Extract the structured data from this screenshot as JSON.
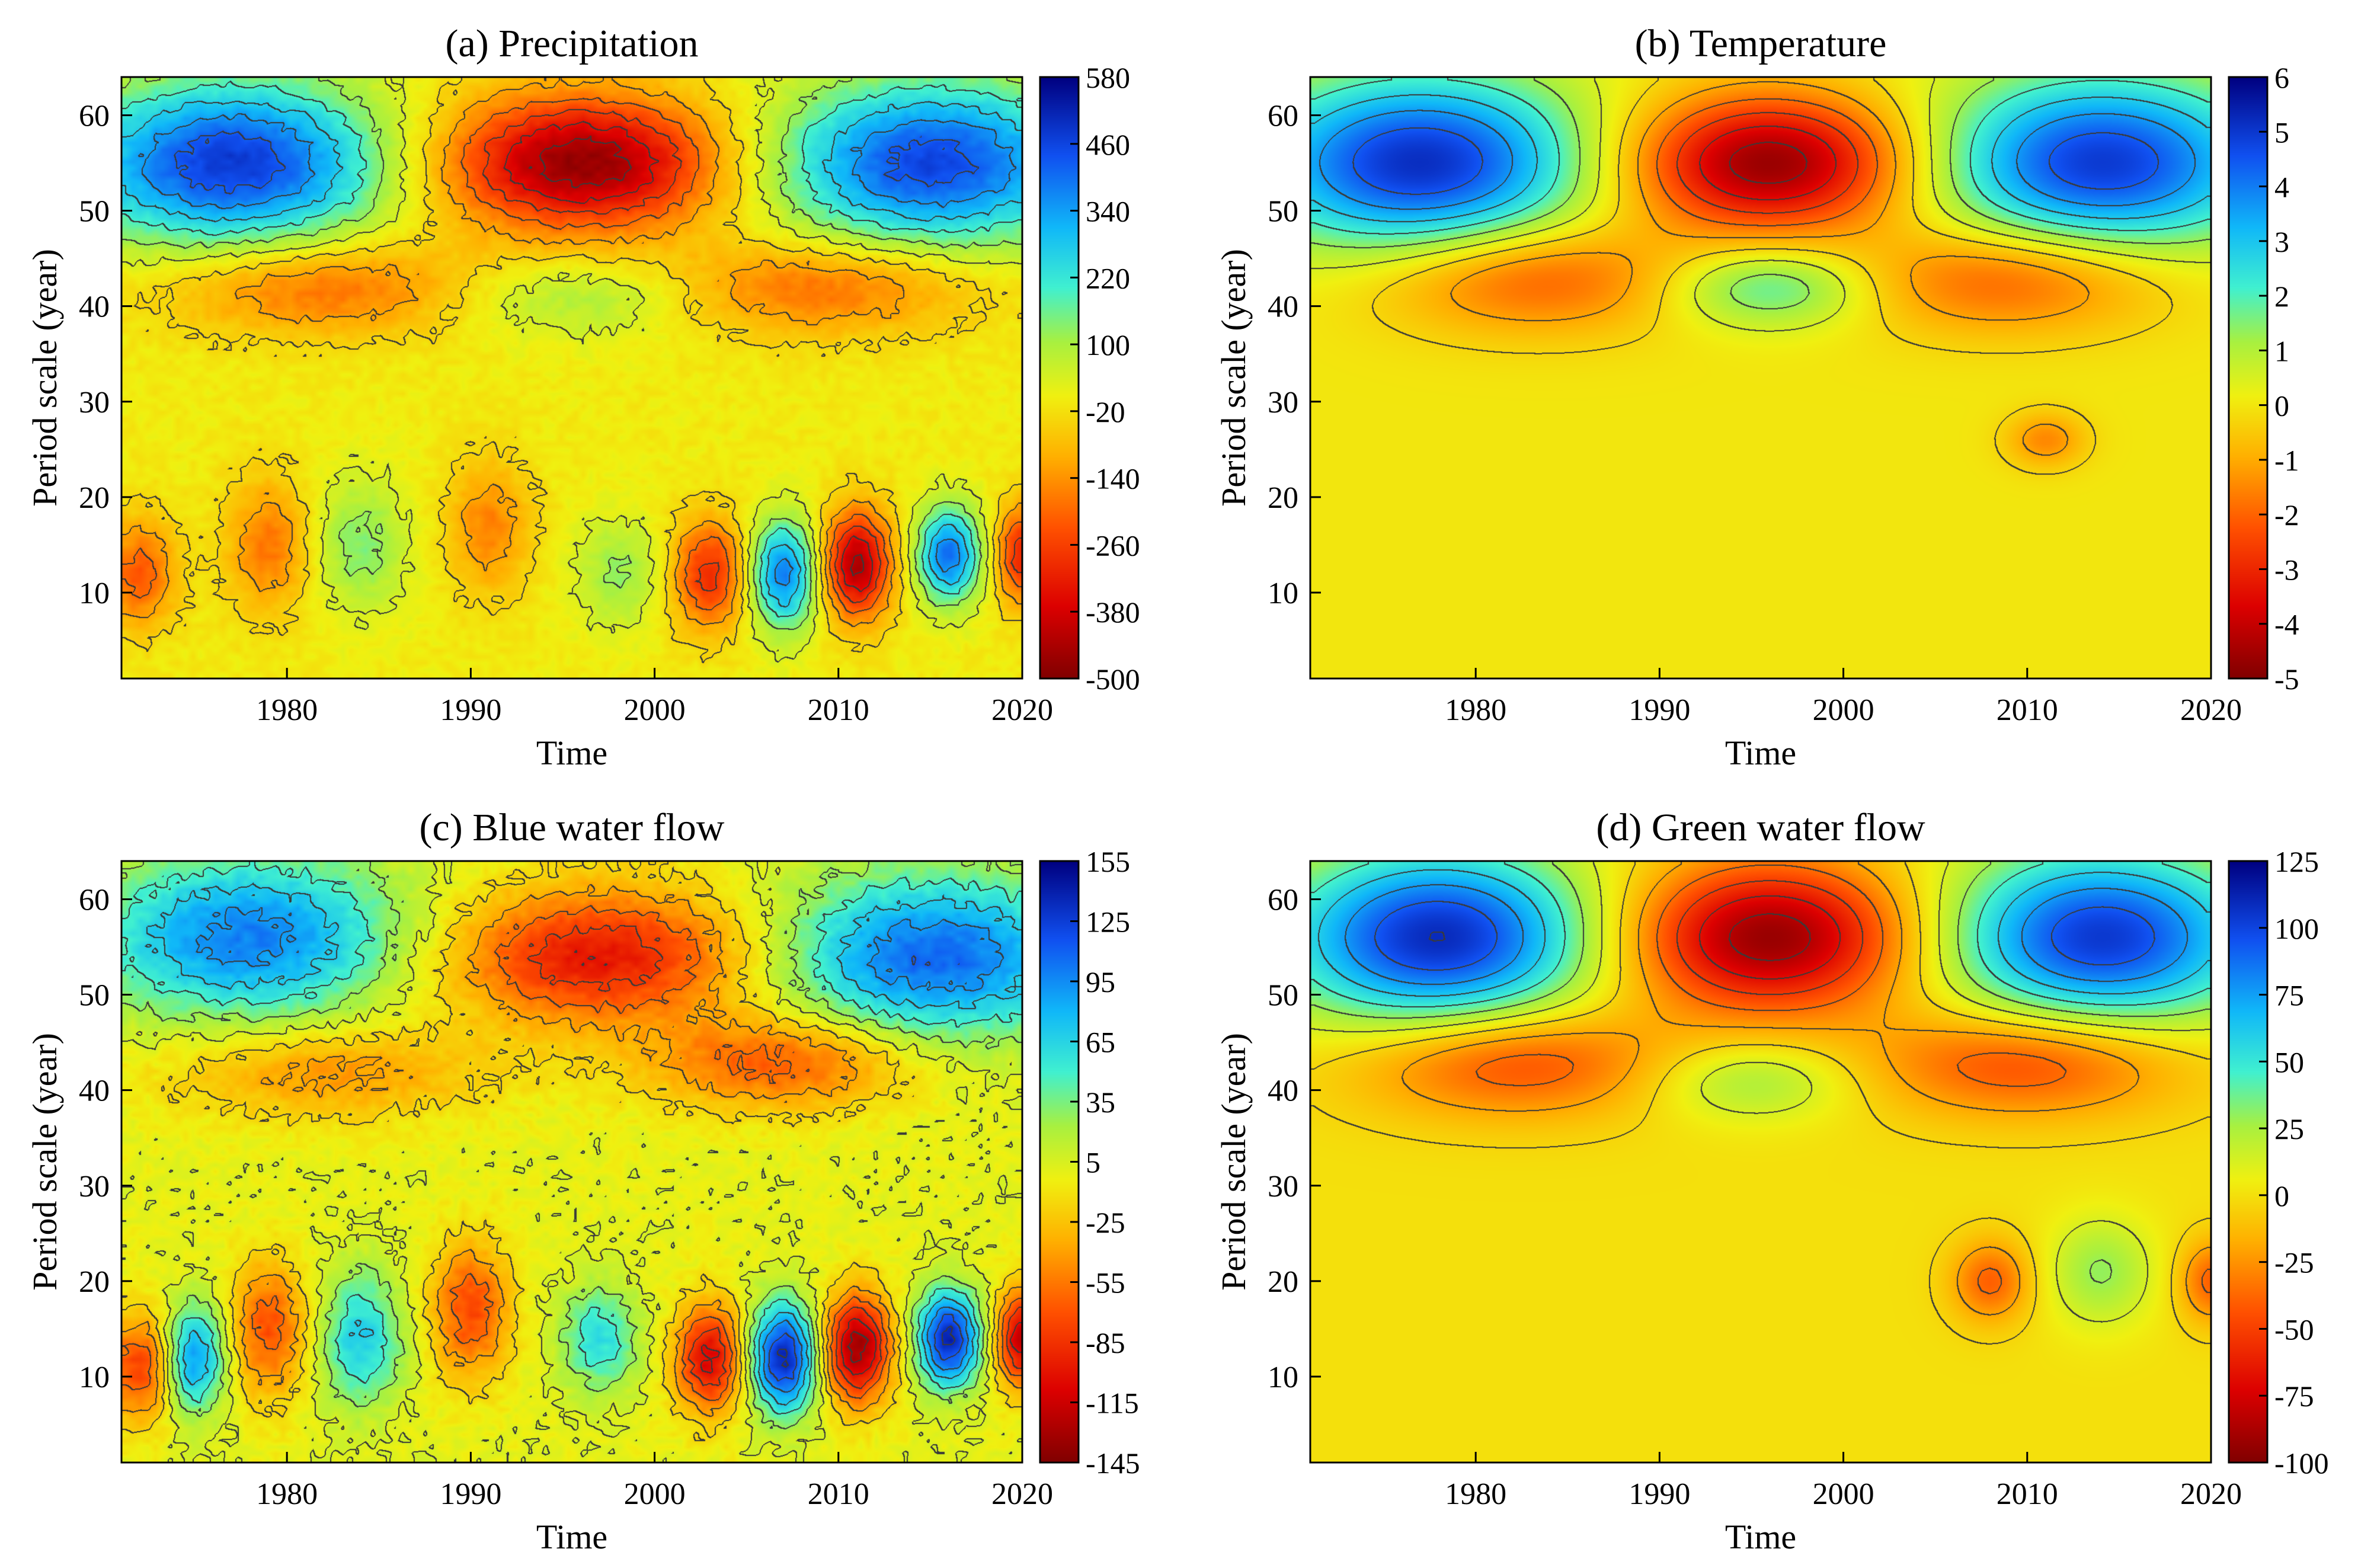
{
  "figure": {
    "xlabel": "Time",
    "ylabel": "Period scale (year)"
  },
  "chart_data": [
    {
      "id": "a",
      "type": "heatmap",
      "title": "(a) Precipitation",
      "xlabel": "Time",
      "ylabel": "Period scale (year)",
      "xlim": [
        1971,
        2020
      ],
      "ylim": [
        1,
        64
      ],
      "xticks": [
        1980,
        1990,
        2000,
        2010,
        2020
      ],
      "yticks": [
        10,
        20,
        30,
        40,
        50,
        60
      ],
      "colorbar": {
        "min": -500,
        "max": 580,
        "ticks": [
          "580",
          "460",
          "340",
          "220",
          "100",
          "-20",
          "-140",
          "-260",
          "-380",
          "-500"
        ]
      },
      "noise": 0.22,
      "features": [
        {
          "label": "blue high, left top",
          "x": 1977,
          "y": 55,
          "value": 480,
          "sx": 6,
          "sy": 6
        },
        {
          "label": "red low, centre top",
          "x": 1996,
          "y": 55,
          "value": -480,
          "sx": 5.5,
          "sy": 5
        },
        {
          "label": "blue high, right top",
          "x": 2015,
          "y": 55,
          "value": 460,
          "sx": 6,
          "sy": 6
        },
        {
          "label": "orange band left",
          "x": 1982,
          "y": 42,
          "value": -200,
          "sx": 6,
          "sy": 3.5
        },
        {
          "label": "orange band right",
          "x": 2009,
          "y": 42,
          "value": -200,
          "sx": 6,
          "sy": 3.5
        },
        {
          "label": "cyan centre",
          "x": 1996,
          "y": 41,
          "value": 120,
          "sx": 5,
          "sy": 3
        },
        {
          "label": "orange blob 1974",
          "x": 1972,
          "y": 12,
          "value": -220,
          "sx": 1.4,
          "sy": 4
        },
        {
          "label": "orange blob 1980",
          "x": 1979,
          "y": 15,
          "value": -180,
          "sx": 1.6,
          "sy": 5
        },
        {
          "label": "cyan blob 1984",
          "x": 1984,
          "y": 15,
          "value": 140,
          "sx": 1.8,
          "sy": 5
        },
        {
          "label": "orange blob 1990",
          "x": 1991,
          "y": 17,
          "value": -160,
          "sx": 1.6,
          "sy": 5
        },
        {
          "label": "cyan blob 1998",
          "x": 1998,
          "y": 12,
          "value": 120,
          "sx": 1.6,
          "sy": 4
        },
        {
          "label": "red blob 2003",
          "x": 2003,
          "y": 12,
          "value": -300,
          "sx": 1.4,
          "sy": 4
        },
        {
          "label": "blue blob 2007",
          "x": 2007,
          "y": 12,
          "value": 380,
          "sx": 1.3,
          "sy": 4
        },
        {
          "label": "dark red blob 2011",
          "x": 2011,
          "y": 13,
          "value": -440,
          "sx": 1.3,
          "sy": 4
        },
        {
          "label": "blue blob 2016",
          "x": 2016,
          "y": 14,
          "value": 400,
          "sx": 1.2,
          "sy": 3.5
        },
        {
          "label": "red blob 2020",
          "x": 2020,
          "y": 14,
          "value": -320,
          "sx": 1.0,
          "sy": 3.5
        }
      ]
    },
    {
      "id": "b",
      "type": "heatmap",
      "title": "(b) Temperature",
      "xlabel": "Time",
      "ylabel": "Period scale (year)",
      "xlim": [
        1971,
        2020
      ],
      "ylim": [
        1,
        64
      ],
      "xticks": [
        1980,
        1990,
        2000,
        2010,
        2020
      ],
      "yticks": [
        10,
        20,
        30,
        40,
        50,
        60
      ],
      "colorbar": {
        "min": -5,
        "max": 6,
        "ticks": [
          "6",
          "5",
          "4",
          "3",
          "2",
          "1",
          "0",
          "-1",
          "-2",
          "-3",
          "-4",
          "-5"
        ]
      },
      "noise": 0.0,
      "features": [
        {
          "label": "blue high, left top",
          "x": 1977,
          "y": 55,
          "value": 5.2,
          "sx": 6.5,
          "sy": 6.5
        },
        {
          "label": "red low, centre top",
          "x": 1996,
          "y": 55,
          "value": -4.8,
          "sx": 5.5,
          "sy": 5
        },
        {
          "label": "blue high, right top",
          "x": 2014,
          "y": 55,
          "value": 5.0,
          "sx": 6.5,
          "sy": 6.5
        },
        {
          "label": "orange band left",
          "x": 1983,
          "y": 43,
          "value": -2.3,
          "sx": 6,
          "sy": 4
        },
        {
          "label": "orange band right",
          "x": 2009,
          "y": 43,
          "value": -2.3,
          "sx": 6,
          "sy": 4
        },
        {
          "label": "cyan centre",
          "x": 1996,
          "y": 42,
          "value": 2.2,
          "sx": 4,
          "sy": 3
        },
        {
          "label": "orange dot 2011",
          "x": 2011,
          "y": 26,
          "value": -1.5,
          "sx": 1.5,
          "sy": 2
        }
      ]
    },
    {
      "id": "c",
      "type": "heatmap",
      "title": "(c) Blue water flow",
      "xlabel": "Time",
      "ylabel": "Period scale (year)",
      "xlim": [
        1971,
        2020
      ],
      "ylim": [
        1,
        64
      ],
      "xticks": [
        1980,
        1990,
        2000,
        2010,
        2020
      ],
      "yticks": [
        10,
        20,
        30,
        40,
        50,
        60
      ],
      "colorbar": {
        "min": -145,
        "max": 155,
        "ticks": [
          "155",
          "125",
          "95",
          "65",
          "35",
          "5",
          "-25",
          "-55",
          "-85",
          "-115",
          "-145"
        ]
      },
      "noise": 0.3,
      "features": [
        {
          "label": "blue high, left top",
          "x": 1978,
          "y": 56,
          "value": 100,
          "sx": 6,
          "sy": 6
        },
        {
          "label": "orange low, centre top",
          "x": 1997,
          "y": 54,
          "value": -100,
          "sx": 6,
          "sy": 5
        },
        {
          "label": "blue high, right top",
          "x": 2015,
          "y": 54,
          "value": 110,
          "sx": 6,
          "sy": 6
        },
        {
          "label": "yellow band left",
          "x": 1982,
          "y": 42,
          "value": -45,
          "sx": 6,
          "sy": 3.5
        },
        {
          "label": "orange band right",
          "x": 2007,
          "y": 43,
          "value": -70,
          "sx": 5,
          "sy": 3.5
        },
        {
          "label": "blob 1972",
          "x": 1972,
          "y": 11,
          "value": -80,
          "sx": 1.2,
          "sy": 4
        },
        {
          "label": "blob 1975",
          "x": 1975,
          "y": 12,
          "value": 90,
          "sx": 1.2,
          "sy": 4
        },
        {
          "label": "blob 1979",
          "x": 1979,
          "y": 15,
          "value": -70,
          "sx": 1.5,
          "sy": 5
        },
        {
          "label": "blob 1984",
          "x": 1984,
          "y": 14,
          "value": 70,
          "sx": 1.6,
          "sy": 5
        },
        {
          "label": "blob 1990",
          "x": 1990,
          "y": 17,
          "value": -75,
          "sx": 1.5,
          "sy": 5
        },
        {
          "label": "blob 1997",
          "x": 1997,
          "y": 14,
          "value": 60,
          "sx": 1.5,
          "sy": 4
        },
        {
          "label": "blob 2003",
          "x": 2003,
          "y": 12,
          "value": -110,
          "sx": 1.3,
          "sy": 4
        },
        {
          "label": "blob 2007",
          "x": 2007,
          "y": 12,
          "value": 140,
          "sx": 1.3,
          "sy": 4
        },
        {
          "label": "blob 2011",
          "x": 2011,
          "y": 13,
          "value": -135,
          "sx": 1.3,
          "sy": 4
        },
        {
          "label": "blob 2016",
          "x": 2016,
          "y": 14,
          "value": 140,
          "sx": 1.2,
          "sy": 3.5
        },
        {
          "label": "blob 2020",
          "x": 2020,
          "y": 14,
          "value": -120,
          "sx": 1.0,
          "sy": 3.5
        }
      ]
    },
    {
      "id": "d",
      "type": "heatmap",
      "title": "(d) Green water flow",
      "xlabel": "Time",
      "ylabel": "Period scale (year)",
      "xlim": [
        1971,
        2020
      ],
      "ylim": [
        1,
        64
      ],
      "xticks": [
        1980,
        1990,
        2000,
        2010,
        2020
      ],
      "yticks": [
        10,
        20,
        30,
        40,
        50,
        60
      ],
      "colorbar": {
        "min": -100,
        "max": 125,
        "ticks": [
          "125",
          "100",
          "75",
          "50",
          "25",
          "0",
          "-25",
          "-50",
          "-75",
          "-100"
        ]
      },
      "noise": 0.0,
      "features": [
        {
          "label": "blue high, left top",
          "x": 1978,
          "y": 56,
          "value": 110,
          "sx": 6,
          "sy": 6.5
        },
        {
          "label": "red low, centre top",
          "x": 1996,
          "y": 56,
          "value": -95,
          "sx": 5.5,
          "sy": 5.5
        },
        {
          "label": "blue high, right top",
          "x": 2014,
          "y": 56,
          "value": 105,
          "sx": 6,
          "sy": 6.5
        },
        {
          "label": "orange band left",
          "x": 1982,
          "y": 43,
          "value": -50,
          "sx": 6,
          "sy": 4
        },
        {
          "label": "orange band right",
          "x": 2010,
          "y": 43,
          "value": -50,
          "sx": 6,
          "sy": 4
        },
        {
          "label": "cyan centre",
          "x": 1995,
          "y": 41,
          "value": 30,
          "sx": 4,
          "sy": 3
        },
        {
          "label": "cyan blob 2014",
          "x": 2014,
          "y": 21,
          "value": 30,
          "sx": 2,
          "sy": 4
        },
        {
          "label": "orange blob 2008",
          "x": 2008,
          "y": 20,
          "value": -40,
          "sx": 1.5,
          "sy": 3
        },
        {
          "label": "orange blob 2020",
          "x": 2020,
          "y": 20,
          "value": -40,
          "sx": 1.2,
          "sy": 3
        }
      ]
    }
  ]
}
